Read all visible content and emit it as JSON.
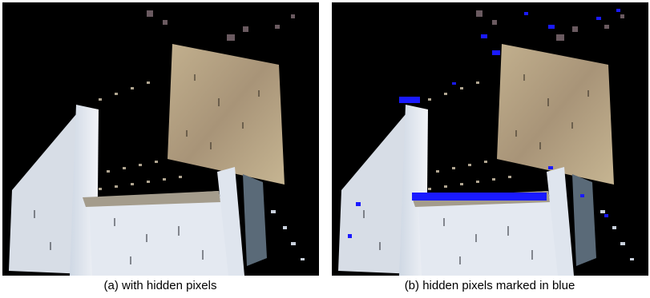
{
  "figure": {
    "panels": [
      {
        "caption": "(a) with hidden pixels"
      },
      {
        "caption": "(b) hidden pixels marked in blue"
      }
    ]
  }
}
